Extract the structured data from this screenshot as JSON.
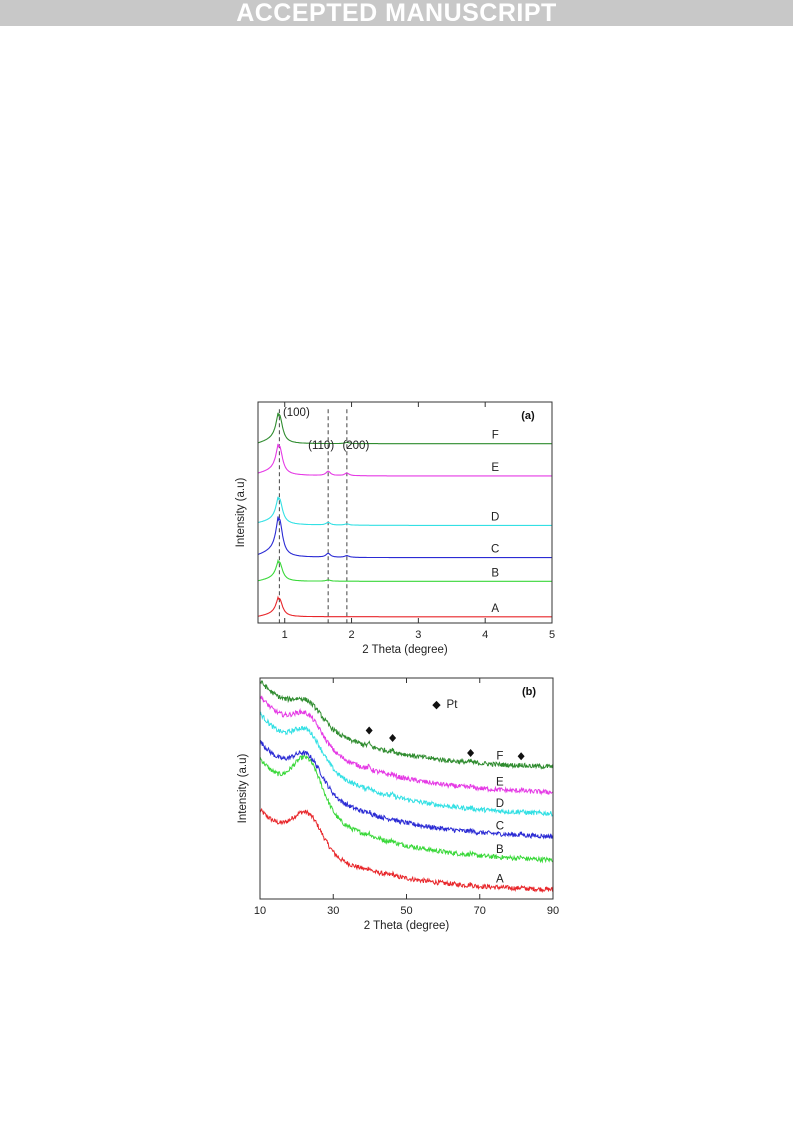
{
  "banner": {
    "text": "ACCEPTED MANUSCRIPT",
    "bg_color": "#c8c8c8",
    "text_color": "#ffffff"
  },
  "chart_data": [
    {
      "type": "line",
      "panel_label": "(a)",
      "xlabel": "2 Theta (degree)",
      "ylabel": "Intensity (a.u)",
      "xlim": [
        0.6,
        5
      ],
      "xticks": [
        1,
        2,
        3,
        4,
        5
      ],
      "yticks_shown": false,
      "grid": false,
      "legend": "none",
      "annotations": [
        {
          "text": "(100)",
          "x": 0.92
        },
        {
          "text": "(110)",
          "x": 1.65
        },
        {
          "text": "(200)",
          "x": 1.93
        }
      ],
      "reference_lines_x": [
        0.92,
        1.65,
        1.93
      ],
      "series": [
        {
          "name": "A",
          "color": "#e8262a",
          "baseline": 0.015,
          "peak_100": 0.085,
          "peak_110": 0.0,
          "peak_200": 0.0,
          "tail": 0.0
        },
        {
          "name": "B",
          "color": "#3ad83a",
          "baseline": 0.18,
          "peak_100": 0.09,
          "peak_110": 0.006,
          "peak_200": 0.0,
          "tail": 0.0
        },
        {
          "name": "C",
          "color": "#2b2bd4",
          "baseline": 0.29,
          "peak_100": 0.175,
          "peak_110": 0.018,
          "peak_200": 0.008,
          "tail": 0.01
        },
        {
          "name": "D",
          "color": "#33e0e4",
          "baseline": 0.44,
          "peak_100": 0.12,
          "peak_110": 0.012,
          "peak_200": 0.006,
          "tail": 0.01
        },
        {
          "name": "E",
          "color": "#e53ae5",
          "baseline": 0.67,
          "peak_100": 0.135,
          "peak_110": 0.02,
          "peak_200": 0.012,
          "tail": 0.01
        },
        {
          "name": "F",
          "color": "#2f8c2f",
          "baseline": 0.82,
          "peak_100": 0.135,
          "peak_110": 0.0,
          "peak_200": 0.006,
          "tail": 0.0
        }
      ]
    },
    {
      "type": "line",
      "panel_label": "(b)",
      "xlabel": "2 Theta (degree)",
      "ylabel": "Intensity (a.u)",
      "xlim": [
        10,
        90
      ],
      "xticks": [
        10,
        30,
        50,
        70,
        90
      ],
      "yticks_shown": false,
      "grid": false,
      "legend": "top-right",
      "legend_entries": [
        {
          "marker": "◆",
          "label": "Pt"
        }
      ],
      "pt_marker_x": [
        39.8,
        46.2,
        67.5,
        81.3
      ],
      "series": [
        {
          "name": "A",
          "color": "#e8262a",
          "start": 0.4,
          "hump": 0.155,
          "end": 0.02
        },
        {
          "name": "B",
          "color": "#3ad83a",
          "start": 0.64,
          "hump": 0.215,
          "end": 0.155
        },
        {
          "name": "C",
          "color": "#2b2bd4",
          "start": 0.72,
          "hump": 0.14,
          "end": 0.265
        },
        {
          "name": "D",
          "color": "#33e0e4",
          "start": 0.85,
          "hump": 0.135,
          "end": 0.37
        },
        {
          "name": "E",
          "color": "#e53ae5",
          "start": 0.93,
          "hump": 0.12,
          "end": 0.47
        },
        {
          "name": "F",
          "color": "#2f8c2f",
          "start": 1.0,
          "hump": 0.09,
          "end": 0.59
        }
      ]
    }
  ]
}
